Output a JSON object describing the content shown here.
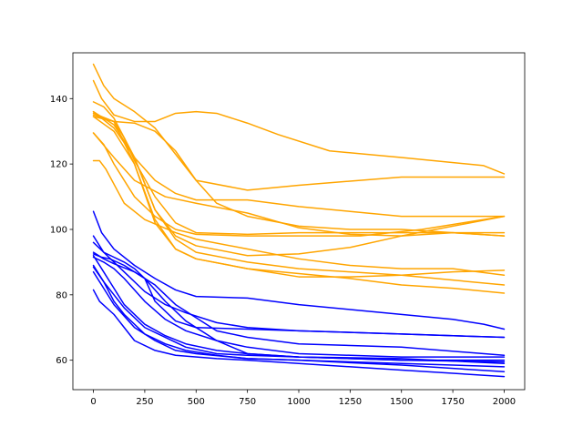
{
  "chart_data": {
    "type": "line",
    "title": "",
    "xlabel": "",
    "ylabel": "",
    "xlim": [
      -100,
      2100
    ],
    "ylim": [
      51,
      154
    ],
    "xticks": [
      0,
      250,
      500,
      750,
      1000,
      1250,
      1500,
      1750,
      2000
    ],
    "yticks": [
      60,
      80,
      100,
      120,
      140
    ],
    "grid": false,
    "legend": "none",
    "colors": {
      "orange": "#ffa500",
      "blue": "#0000ff"
    },
    "series": [
      {
        "color": "#ffa500",
        "points": [
          [
            0,
            150.5
          ],
          [
            50,
            144
          ],
          [
            100,
            140
          ],
          [
            200,
            136
          ],
          [
            300,
            131
          ],
          [
            400,
            123
          ],
          [
            500,
            115
          ],
          [
            750,
            112
          ],
          [
            1000,
            113.5
          ],
          [
            1500,
            116
          ],
          [
            2000,
            116
          ]
        ]
      },
      {
        "color": "#ffa500",
        "points": [
          [
            0,
            145.5
          ],
          [
            40,
            140
          ],
          [
            100,
            135
          ],
          [
            200,
            133
          ],
          [
            300,
            133
          ],
          [
            400,
            135.5
          ],
          [
            500,
            136
          ],
          [
            600,
            135.5
          ],
          [
            750,
            132.5
          ],
          [
            900,
            129
          ],
          [
            1150,
            124
          ],
          [
            1500,
            122
          ],
          [
            1900,
            119.5
          ],
          [
            2000,
            117
          ]
        ]
      },
      {
        "color": "#ffa500",
        "points": [
          [
            0,
            136
          ],
          [
            100,
            131
          ],
          [
            200,
            122
          ],
          [
            300,
            115
          ],
          [
            400,
            111
          ],
          [
            500,
            109
          ],
          [
            750,
            109
          ],
          [
            1000,
            107
          ],
          [
            1250,
            105.5
          ],
          [
            1500,
            104
          ],
          [
            2000,
            104
          ]
        ]
      },
      {
        "color": "#ffa500",
        "points": [
          [
            0,
            139
          ],
          [
            50,
            137.5
          ],
          [
            100,
            134
          ],
          [
            150,
            128
          ],
          [
            200,
            121
          ],
          [
            300,
            110
          ],
          [
            400,
            102
          ],
          [
            500,
            99
          ],
          [
            750,
            98.5
          ],
          [
            1000,
            99
          ],
          [
            1500,
            99
          ],
          [
            2000,
            99
          ]
        ]
      },
      {
        "color": "#ffa500",
        "points": [
          [
            0,
            134.5
          ],
          [
            100,
            133
          ],
          [
            200,
            132.5
          ],
          [
            300,
            130
          ],
          [
            400,
            124
          ],
          [
            500,
            115
          ],
          [
            600,
            108
          ],
          [
            750,
            104
          ],
          [
            1000,
            101
          ],
          [
            1250,
            100
          ],
          [
            1500,
            100
          ],
          [
            2000,
            98
          ]
        ]
      },
      {
        "color": "#ffa500",
        "points": [
          [
            0,
            129.5
          ],
          [
            50,
            126
          ],
          [
            100,
            120
          ],
          [
            200,
            110
          ],
          [
            300,
            104
          ],
          [
            400,
            100
          ],
          [
            500,
            98.5
          ],
          [
            750,
            98
          ],
          [
            1000,
            98
          ],
          [
            1300,
            98
          ],
          [
            1600,
            100
          ],
          [
            1800,
            102
          ],
          [
            2000,
            104
          ]
        ]
      },
      {
        "color": "#ffa500",
        "points": [
          [
            0,
            121
          ],
          [
            30,
            121
          ],
          [
            60,
            118.5
          ],
          [
            150,
            108
          ],
          [
            250,
            103
          ],
          [
            400,
            99
          ],
          [
            500,
            97
          ],
          [
            750,
            94
          ],
          [
            1000,
            91
          ],
          [
            1250,
            89
          ],
          [
            1500,
            88
          ],
          [
            1750,
            88
          ],
          [
            2000,
            86
          ]
        ]
      },
      {
        "color": "#ffa500",
        "points": [
          [
            0,
            129.5
          ],
          [
            100,
            122
          ],
          [
            200,
            115
          ],
          [
            350,
            110
          ],
          [
            500,
            108
          ],
          [
            750,
            105
          ],
          [
            1000,
            100.5
          ],
          [
            1250,
            98.5
          ],
          [
            1500,
            98
          ],
          [
            1750,
            99
          ],
          [
            2000,
            98
          ]
        ]
      },
      {
        "color": "#ffa500",
        "points": [
          [
            0,
            135.5
          ],
          [
            100,
            133
          ],
          [
            150,
            128
          ],
          [
            200,
            122
          ],
          [
            300,
            106
          ],
          [
            400,
            98
          ],
          [
            500,
            95
          ],
          [
            750,
            92
          ],
          [
            1000,
            92.5
          ],
          [
            1250,
            94.5
          ],
          [
            1500,
            98
          ],
          [
            1750,
            101
          ],
          [
            2000,
            104
          ]
        ]
      },
      {
        "color": "#ffa500",
        "points": [
          [
            0,
            135
          ],
          [
            100,
            133
          ],
          [
            200,
            120
          ],
          [
            300,
            103
          ],
          [
            400,
            94
          ],
          [
            500,
            91
          ],
          [
            750,
            88
          ],
          [
            1000,
            85.5
          ],
          [
            1250,
            85.5
          ],
          [
            1500,
            86
          ],
          [
            1750,
            87
          ],
          [
            2000,
            87.5
          ]
        ]
      },
      {
        "color": "#ffa500",
        "points": [
          [
            0,
            134.5
          ],
          [
            100,
            130
          ],
          [
            200,
            120
          ],
          [
            300,
            102
          ],
          [
            400,
            94
          ],
          [
            500,
            91
          ],
          [
            750,
            88
          ],
          [
            1000,
            86.5
          ],
          [
            1250,
            85
          ],
          [
            1500,
            83
          ],
          [
            1750,
            82
          ],
          [
            2000,
            80.5
          ]
        ]
      },
      {
        "color": "#ffa500",
        "points": [
          [
            0,
            136
          ],
          [
            100,
            132
          ],
          [
            200,
            122
          ],
          [
            300,
            106
          ],
          [
            400,
            97
          ],
          [
            500,
            93
          ],
          [
            750,
            90
          ],
          [
            1000,
            88
          ],
          [
            1250,
            87
          ],
          [
            1500,
            86
          ],
          [
            1750,
            84.5
          ],
          [
            2000,
            83
          ]
        ]
      },
      {
        "color": "#0000ff",
        "points": [
          [
            0,
            105.5
          ],
          [
            40,
            99
          ],
          [
            100,
            94
          ],
          [
            200,
            89
          ],
          [
            300,
            85
          ],
          [
            400,
            81.5
          ],
          [
            500,
            79.5
          ],
          [
            750,
            79
          ],
          [
            1000,
            77
          ],
          [
            1250,
            75.5
          ],
          [
            1500,
            74
          ],
          [
            1750,
            72.5
          ],
          [
            1900,
            71
          ],
          [
            2000,
            69.5
          ]
        ]
      },
      {
        "color": "#0000ff",
        "points": [
          [
            0,
            98
          ],
          [
            50,
            93
          ],
          [
            100,
            90
          ],
          [
            150,
            87
          ],
          [
            250,
            81
          ],
          [
            350,
            77
          ],
          [
            450,
            74.5
          ],
          [
            600,
            71.5
          ],
          [
            750,
            70
          ],
          [
            1000,
            69
          ],
          [
            1500,
            68
          ],
          [
            2000,
            67
          ]
        ]
      },
      {
        "color": "#0000ff",
        "points": [
          [
            0,
            96
          ],
          [
            50,
            93
          ],
          [
            100,
            91.5
          ],
          [
            150,
            90
          ],
          [
            200,
            88
          ],
          [
            250,
            85
          ],
          [
            300,
            78
          ],
          [
            400,
            72
          ],
          [
            500,
            70
          ],
          [
            750,
            69.5
          ],
          [
            1000,
            69
          ],
          [
            1500,
            68
          ],
          [
            2000,
            67
          ]
        ]
      },
      {
        "color": "#0000ff",
        "points": [
          [
            0,
            93
          ],
          [
            50,
            91
          ],
          [
            100,
            89.5
          ],
          [
            200,
            87
          ],
          [
            300,
            83
          ],
          [
            400,
            77
          ],
          [
            500,
            73
          ],
          [
            600,
            69
          ],
          [
            750,
            67
          ],
          [
            1000,
            65
          ],
          [
            1500,
            64
          ],
          [
            2000,
            61.5
          ]
        ]
      },
      {
        "color": "#0000ff",
        "points": [
          [
            0,
            92.5
          ],
          [
            40,
            91.5
          ],
          [
            80,
            91
          ],
          [
            150,
            89
          ],
          [
            250,
            85
          ],
          [
            350,
            78
          ],
          [
            450,
            72
          ],
          [
            600,
            66
          ],
          [
            750,
            62
          ],
          [
            1000,
            61
          ],
          [
            1500,
            60.5
          ],
          [
            2000,
            59
          ]
        ]
      },
      {
        "color": "#0000ff",
        "points": [
          [
            0,
            91.5
          ],
          [
            50,
            90
          ],
          [
            100,
            88
          ],
          [
            150,
            85
          ],
          [
            250,
            78
          ],
          [
            350,
            72.5
          ],
          [
            450,
            69
          ],
          [
            600,
            66
          ],
          [
            750,
            64
          ],
          [
            1000,
            62
          ],
          [
            1500,
            61
          ],
          [
            2000,
            61
          ]
        ]
      },
      {
        "color": "#0000ff",
        "points": [
          [
            0,
            92
          ],
          [
            50,
            87
          ],
          [
            100,
            82
          ],
          [
            150,
            77
          ],
          [
            250,
            71
          ],
          [
            350,
            67.5
          ],
          [
            450,
            65
          ],
          [
            600,
            63
          ],
          [
            750,
            62
          ],
          [
            1000,
            61
          ],
          [
            1500,
            60
          ],
          [
            2000,
            60
          ]
        ]
      },
      {
        "color": "#0000ff",
        "points": [
          [
            0,
            89
          ],
          [
            50,
            84
          ],
          [
            100,
            80
          ],
          [
            150,
            76
          ],
          [
            250,
            70
          ],
          [
            350,
            67
          ],
          [
            450,
            64
          ],
          [
            600,
            62
          ],
          [
            750,
            61.5
          ],
          [
            1000,
            61
          ],
          [
            1500,
            60
          ],
          [
            2000,
            59.5
          ]
        ]
      },
      {
        "color": "#0000ff",
        "points": [
          [
            0,
            88.5
          ],
          [
            50,
            84
          ],
          [
            100,
            78
          ],
          [
            150,
            74
          ],
          [
            250,
            68
          ],
          [
            350,
            65
          ],
          [
            450,
            63
          ],
          [
            600,
            61.5
          ],
          [
            750,
            60.5
          ],
          [
            1000,
            60
          ],
          [
            1500,
            59
          ],
          [
            2000,
            58
          ]
        ]
      },
      {
        "color": "#0000ff",
        "points": [
          [
            0,
            87
          ],
          [
            50,
            82
          ],
          [
            100,
            77
          ],
          [
            200,
            70
          ],
          [
            300,
            66
          ],
          [
            400,
            63
          ],
          [
            500,
            62
          ],
          [
            750,
            60.5
          ],
          [
            1000,
            60
          ],
          [
            1500,
            58.5
          ],
          [
            2000,
            56.5
          ]
        ]
      },
      {
        "color": "#0000ff",
        "points": [
          [
            0,
            81.5
          ],
          [
            30,
            78
          ],
          [
            100,
            74
          ],
          [
            150,
            70
          ],
          [
            200,
            66
          ],
          [
            300,
            63
          ],
          [
            400,
            61.5
          ],
          [
            600,
            60.5
          ],
          [
            750,
            60
          ],
          [
            1000,
            59
          ],
          [
            1500,
            57
          ],
          [
            2000,
            55
          ]
        ]
      }
    ]
  }
}
